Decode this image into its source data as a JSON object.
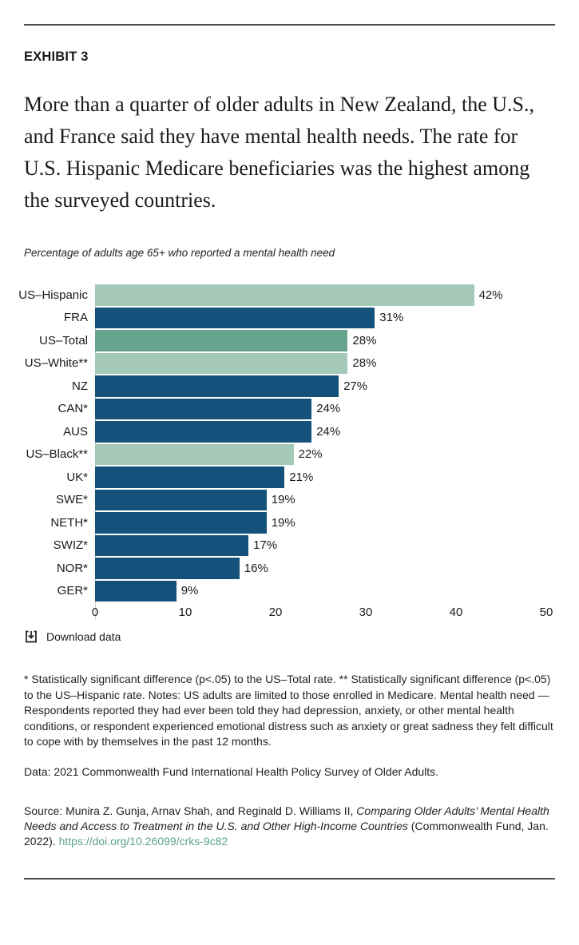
{
  "exhibit_label": "EXHIBIT 3",
  "headline": "More than a quarter of older adults in New Zealand, the U.S., and France said they have mental health needs. The rate for U.S. Hispanic Medicare beneficiaries was the highest among the surveyed countries.",
  "subtitle": "Percentage of adults age 65+ who reported a mental health need",
  "download": {
    "label": "Download data"
  },
  "footnote": "* Statistically significant difference (p<.05) to the US–Total rate. ** Statistically significant difference (p<.05) to the US–Hispanic rate. Notes: US adults are limited to those enrolled in Medicare. Mental health need — Respondents reported they had ever been told they had depression, anxiety, or other mental health conditions, or respondent experienced emotional distress such as anxiety or great sadness they felt difficult to cope with by themselves in the past 12 months.",
  "data_note": "Data: 2021 Commonwealth Fund International Health Policy Survey of Older Adults.",
  "source": {
    "prefix": "Source: Munira Z. Gunja, Arnav Shah, and Reginald D. Williams II, ",
    "italic_title": "Comparing Older Adults’ Mental Health Needs and Access to Treatment in the U.S. and Other High-Income Countries",
    "suffix": " (Commonwealth Fund, Jan. 2022). ",
    "link_text": "https://doi.org/10.26099/crks-9c82"
  },
  "colors": {
    "bar_dark_blue": "#14527b",
    "bar_medium_green": "#66a48d",
    "bar_light_green": "#a5c9b8",
    "link_green": "#5aa386",
    "rule_gray": "#4a4a4a",
    "axis_line_gray": "#cccccc",
    "text_primary": "#1a1a1a"
  },
  "chart_data": {
    "type": "bar",
    "orientation": "horizontal",
    "title": "Percentage of adults age 65+ who reported a mental health need",
    "categories": [
      "US–Hispanic",
      "FRA",
      "US–Total",
      "US–White**",
      "NZ",
      "CAN*",
      "AUS",
      "US–Black**",
      "UK*",
      "SWE*",
      "NETH*",
      "SWIZ*",
      "NOR*",
      "GER*"
    ],
    "values": [
      42,
      31,
      28,
      28,
      27,
      24,
      24,
      22,
      21,
      19,
      19,
      17,
      16,
      9
    ],
    "value_labels": [
      "42%",
      "31%",
      "28%",
      "28%",
      "27%",
      "24%",
      "24%",
      "22%",
      "21%",
      "19%",
      "19%",
      "17%",
      "16%",
      "9%"
    ],
    "bar_color_keys": [
      "light",
      "dark",
      "mid",
      "light",
      "dark",
      "dark",
      "dark",
      "light",
      "dark",
      "dark",
      "dark",
      "dark",
      "dark",
      "dark"
    ],
    "xlabel": "",
    "ylabel": "",
    "xlim": [
      0,
      50
    ],
    "x_ticks": [
      "0",
      "10",
      "20",
      "30",
      "40",
      "50"
    ],
    "grid": false,
    "legend": false
  }
}
